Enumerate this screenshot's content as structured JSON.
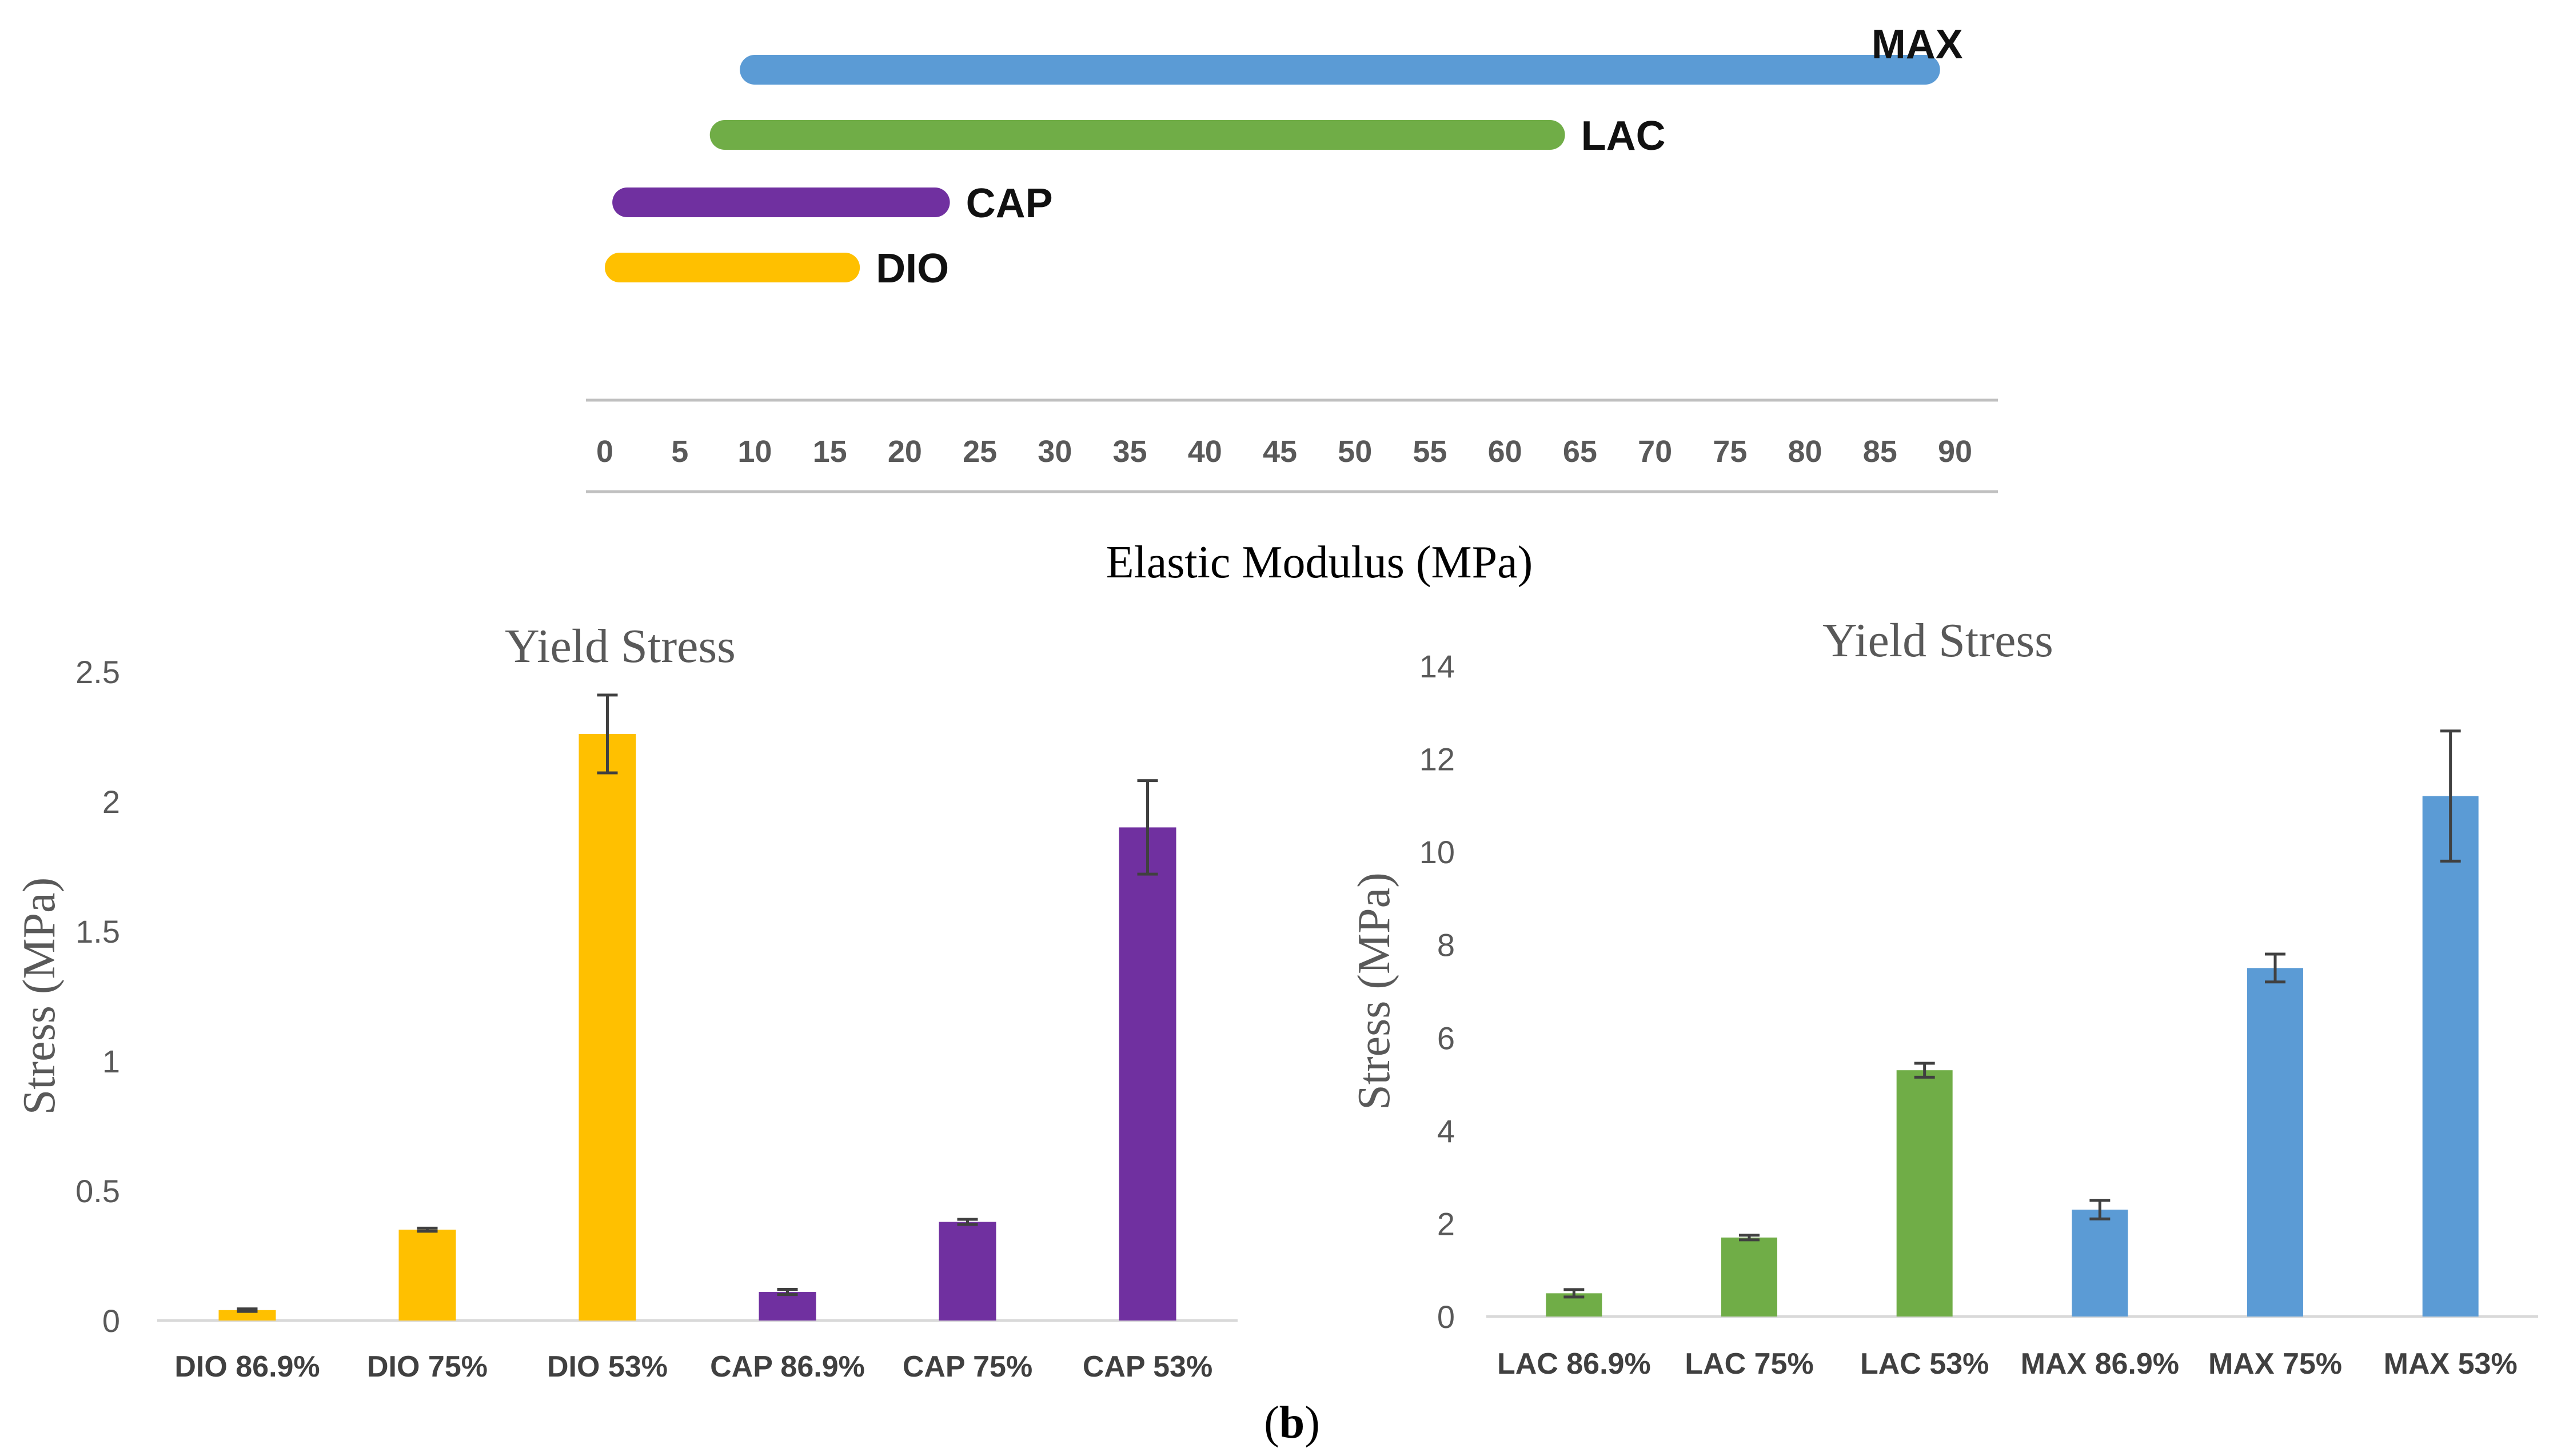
{
  "figure_label": {
    "open": "(",
    "letter": "b",
    "close": ")"
  },
  "chart_data": [
    {
      "type": "range-bar",
      "title": "",
      "xlabel": "Elastic Modulus (MPa)",
      "xlim": [
        0,
        90
      ],
      "ticks": [
        "0",
        "5",
        "10",
        "15",
        "20",
        "25",
        "30",
        "35",
        "40",
        "45",
        "50",
        "55",
        "60",
        "65",
        "70",
        "75",
        "80",
        "85",
        "90"
      ],
      "series": [
        {
          "name": "MAX",
          "min": 9,
          "max": 89,
          "color": "#5b9bd5"
        },
        {
          "name": "LAC",
          "min": 7,
          "max": 64,
          "color": "#70ad47"
        },
        {
          "name": "CAP",
          "min": 0.5,
          "max": 23,
          "color": "#7030a0"
        },
        {
          "name": "DIO",
          "min": 0,
          "max": 17,
          "color": "#ffc000"
        }
      ]
    },
    {
      "type": "bar",
      "title": "Yield Stress",
      "ylabel": "Stress (MPa)",
      "xlabel": "",
      "ylim": [
        0,
        2.5
      ],
      "yticks": [
        "0",
        "0.5",
        "1",
        "1.5",
        "2",
        "2.5"
      ],
      "categories": [
        "DIO 86.9%",
        "DIO 75%",
        "DIO 53%",
        "CAP 86.9%",
        "CAP 75%",
        "CAP 53%"
      ],
      "values": [
        0.04,
        0.35,
        2.26,
        0.11,
        0.38,
        1.9
      ],
      "errors": [
        0.005,
        0.006,
        0.15,
        0.01,
        0.01,
        0.18
      ],
      "colors": [
        "#ffc000",
        "#ffc000",
        "#ffc000",
        "#7030a0",
        "#7030a0",
        "#7030a0"
      ]
    },
    {
      "type": "bar",
      "title": "Yield Stress",
      "ylabel": "Stress (MPa)",
      "xlabel": "",
      "ylim": [
        0,
        14
      ],
      "yticks": [
        "0",
        "2",
        "4",
        "6",
        "8",
        "10",
        "12",
        "14"
      ],
      "categories": [
        "LAC 86.9%",
        "LAC 75%",
        "LAC 53%",
        "MAX 86.9%",
        "MAX 75%",
        "MAX 53%"
      ],
      "values": [
        0.5,
        1.7,
        5.3,
        2.3,
        7.5,
        11.2
      ],
      "errors": [
        0.08,
        0.05,
        0.15,
        0.2,
        0.3,
        1.4
      ],
      "colors": [
        "#70ad47",
        "#70ad47",
        "#70ad47",
        "#5b9bd5",
        "#5b9bd5",
        "#5b9bd5"
      ]
    }
  ]
}
